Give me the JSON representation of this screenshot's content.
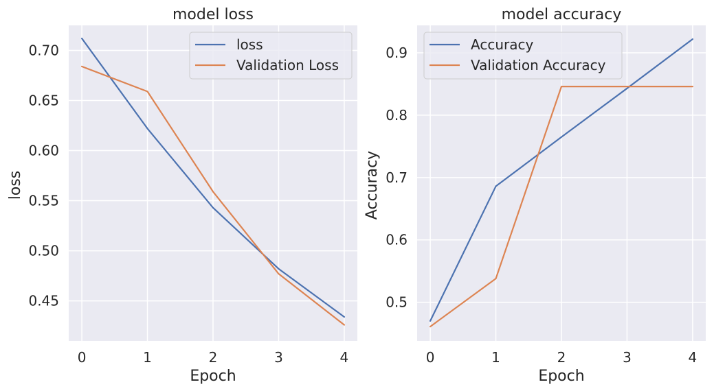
{
  "chart_data": [
    {
      "type": "line",
      "title": "model loss",
      "xlabel": "Epoch",
      "ylabel": "loss",
      "x": [
        0,
        1,
        2,
        3,
        4
      ],
      "xticks": [
        0,
        1,
        2,
        3,
        4
      ],
      "xlim": [
        -0.2,
        4.2
      ],
      "yticks": [
        0.45,
        0.5,
        0.55,
        0.6,
        0.65,
        0.7
      ],
      "ytick_labels": [
        "0.45",
        "0.50",
        "0.55",
        "0.60",
        "0.65",
        "0.70"
      ],
      "ylim": [
        0.41,
        0.725
      ],
      "grid": true,
      "legend_position": "top-right",
      "series": [
        {
          "name": "loss",
          "color": "#4c72b0",
          "values": [
            0.712,
            0.622,
            0.543,
            0.482,
            0.434
          ]
        },
        {
          "name": "Validation Loss",
          "color": "#dd8452",
          "values": [
            0.684,
            0.659,
            0.559,
            0.477,
            0.426
          ]
        }
      ]
    },
    {
      "type": "line",
      "title": "model accuracy",
      "xlabel": "Epoch",
      "ylabel": "Accuracy",
      "x": [
        0,
        1,
        2,
        3,
        4
      ],
      "xticks": [
        0,
        1,
        2,
        3,
        4
      ],
      "xlim": [
        -0.2,
        4.2
      ],
      "yticks": [
        0.5,
        0.6,
        0.7,
        0.8,
        0.9
      ],
      "ytick_labels": [
        "0.5",
        "0.6",
        "0.7",
        "0.8",
        "0.9"
      ],
      "ylim": [
        0.438,
        0.944
      ],
      "grid": true,
      "legend_position": "top-left",
      "series": [
        {
          "name": "Accuracy",
          "color": "#4c72b0",
          "values": [
            0.47,
            0.686,
            0.765,
            0.843,
            0.922
          ]
        },
        {
          "name": "Validation Accuracy",
          "color": "#dd8452",
          "values": [
            0.461,
            0.538,
            0.846,
            0.846,
            0.846
          ]
        }
      ]
    }
  ],
  "style": {
    "axes_background": "#eaeaf2",
    "grid_color": "#ffffff",
    "text_color": "#262626"
  }
}
